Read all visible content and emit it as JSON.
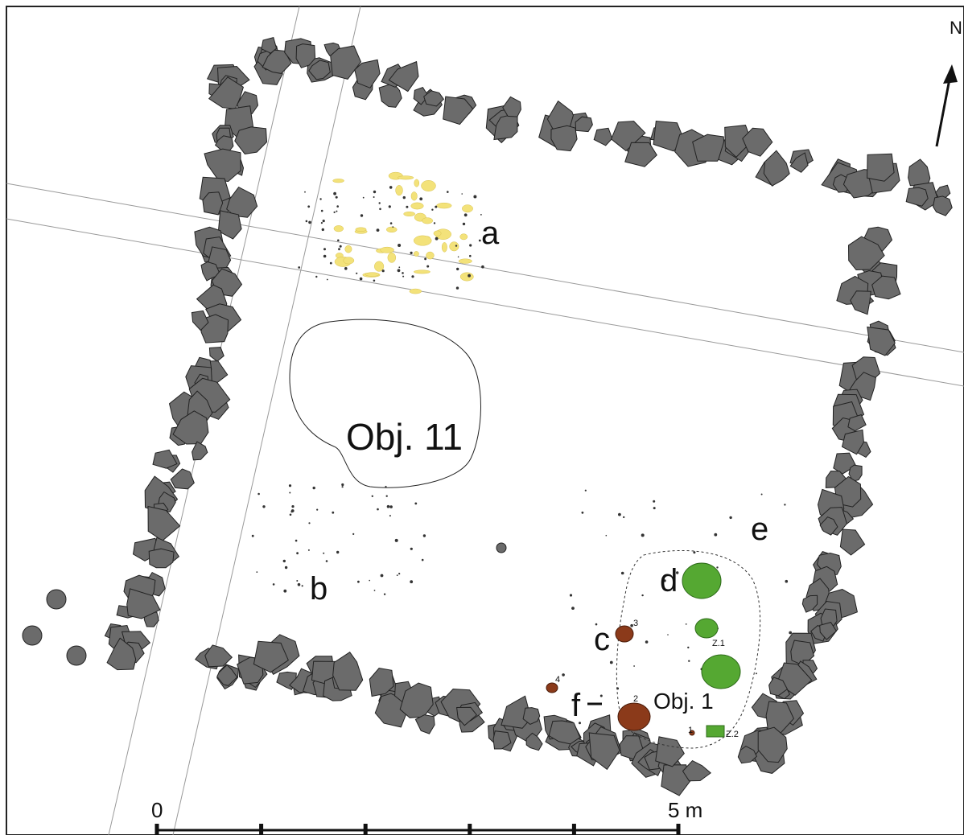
{
  "labels": {
    "a": "a",
    "b": "b",
    "c": "c",
    "d": "d",
    "e": "e",
    "f": "f",
    "obj11": "Obj. 11",
    "obj1": "Obj. 1",
    "z1": "Z.1",
    "z2": "Z.2",
    "c_num": "3",
    "f_num": "2",
    "small4": "4",
    "small1": "1"
  },
  "north": "N",
  "scale": {
    "start": "0",
    "end": "5 m",
    "divisions": 5
  },
  "colors": {
    "stone": "#6b6b6b",
    "outline": "#111111",
    "ochre": "#8b3a1a",
    "green": "#55a832",
    "yellow": "#f3e27a",
    "red_find": "#c0392b"
  }
}
